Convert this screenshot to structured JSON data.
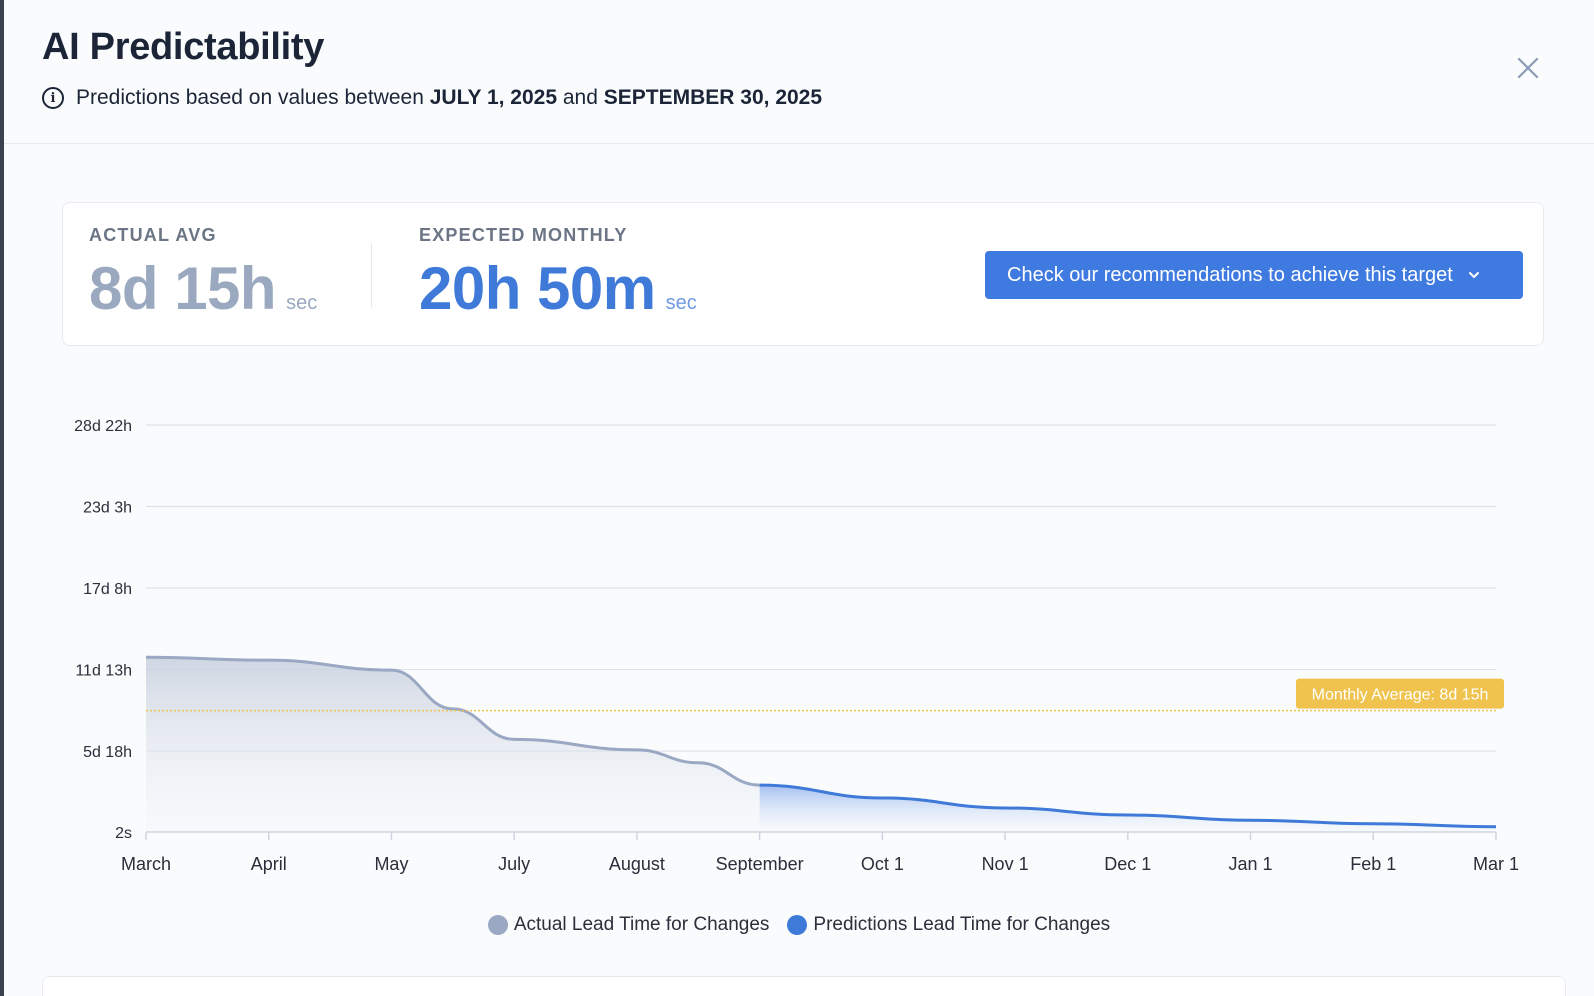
{
  "header": {
    "title": "AI Predictability",
    "subtitle_prefix": "Predictions based on values between",
    "start_date": "JULY 1, 2025",
    "and": "and",
    "end_date": "SEPTEMBER 30, 2025",
    "info_icon_glyph": "i"
  },
  "metrics": {
    "actual": {
      "label": "ACTUAL AVG",
      "value": "8d 15h",
      "unit": "sec"
    },
    "expected": {
      "label": "EXPECTED MONTHLY",
      "value": "20h 50m",
      "unit": "sec"
    }
  },
  "recommendation_button": {
    "label": "Check our recommendations to achieve this target"
  },
  "chart_data": {
    "type": "area",
    "y_ticks": [
      "2s",
      "5d 18h",
      "11d 13h",
      "17d 8h",
      "23d 3h",
      "28d 22h"
    ],
    "y_tick_hours": [
      0,
      138,
      277,
      416,
      555,
      694
    ],
    "ylim_hours": [
      0,
      694
    ],
    "x_labels": [
      "March",
      "April",
      "May",
      "July",
      "August",
      "September",
      "Oct 1",
      "Nov 1",
      "Dec 1",
      "Jan 1",
      "Feb 1",
      "Mar 1"
    ],
    "series": [
      {
        "name": "Actual Lead Time for Changes",
        "color": "#9aa8c4",
        "points": [
          [
            0,
            298
          ],
          [
            1,
            293
          ],
          [
            2,
            276
          ],
          [
            2.5,
            210
          ],
          [
            3,
            158
          ],
          [
            4,
            140
          ],
          [
            4.5,
            118
          ],
          [
            5,
            80
          ]
        ]
      },
      {
        "name": "Predictions Lead Time for Changes",
        "color": "#3f7ad9",
        "points": [
          [
            5,
            80
          ],
          [
            6,
            58
          ],
          [
            7,
            41
          ],
          [
            8,
            29
          ],
          [
            9,
            20
          ],
          [
            10,
            14
          ],
          [
            11,
            9
          ]
        ]
      }
    ],
    "average_line": {
      "value_hours": 207,
      "label": "Monthly Average: 8d 15h",
      "color": "#f0c34f"
    },
    "legend": [
      {
        "label": "Actual Lead Time for Changes",
        "color": "#9aa8c4"
      },
      {
        "label": "Predictions Lead Time for Changes",
        "color": "#3f7ad9"
      }
    ],
    "grid": true
  }
}
